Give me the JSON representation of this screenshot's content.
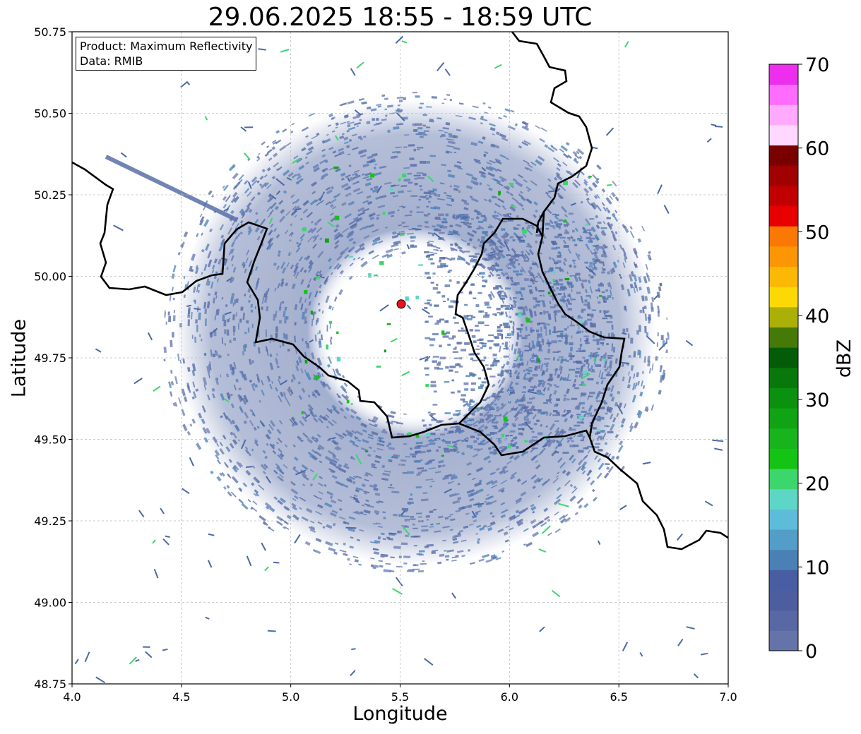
{
  "title": "29.06.2025 18:55 - 18:59 UTC",
  "info": {
    "product": "Product: Maximum Reflectivity",
    "data": "Data: RMIB"
  },
  "axes": {
    "xlabel": "Longitude",
    "ylabel": "Latitude",
    "xlim": [
      4.0,
      7.0
    ],
    "ylim": [
      48.75,
      50.75
    ],
    "xticks": [
      "4.0",
      "4.5",
      "5.0",
      "5.5",
      "6.0",
      "6.5",
      "7.0"
    ],
    "yticks": [
      "48.75",
      "49.00",
      "49.25",
      "49.50",
      "49.75",
      "50.00",
      "50.25",
      "50.50",
      "50.75"
    ],
    "grid": true
  },
  "radar_site": {
    "lon": 5.505,
    "lat": 49.915,
    "color": "#e8141c"
  },
  "colorbar": {
    "label": "dBZ",
    "range": [
      0,
      70
    ],
    "ticks": [
      "0",
      "10",
      "20",
      "30",
      "40",
      "50",
      "60",
      "70"
    ],
    "colors": [
      "#6474a8",
      "#5868a4",
      "#4c5ea0",
      "#485ea2",
      "#4a80b6",
      "#529ec8",
      "#5cbcda",
      "#5ed6c6",
      "#3cd66c",
      "#14c414",
      "#18b41c",
      "#10a414",
      "#0c9010",
      "#08780c",
      "#045c08",
      "#467a08",
      "#aab006",
      "#fcd804",
      "#fcb804",
      "#fc9604",
      "#fc7804",
      "#e80000",
      "#c00000",
      "#a00000",
      "#7a0000",
      "#ffd8ff",
      "#ffaaff",
      "#ff6cff",
      "#ee2eee"
    ]
  },
  "map_colors": {
    "border": "#000000",
    "echo": "#5a6fa8",
    "grid": "#b8b8b8"
  }
}
